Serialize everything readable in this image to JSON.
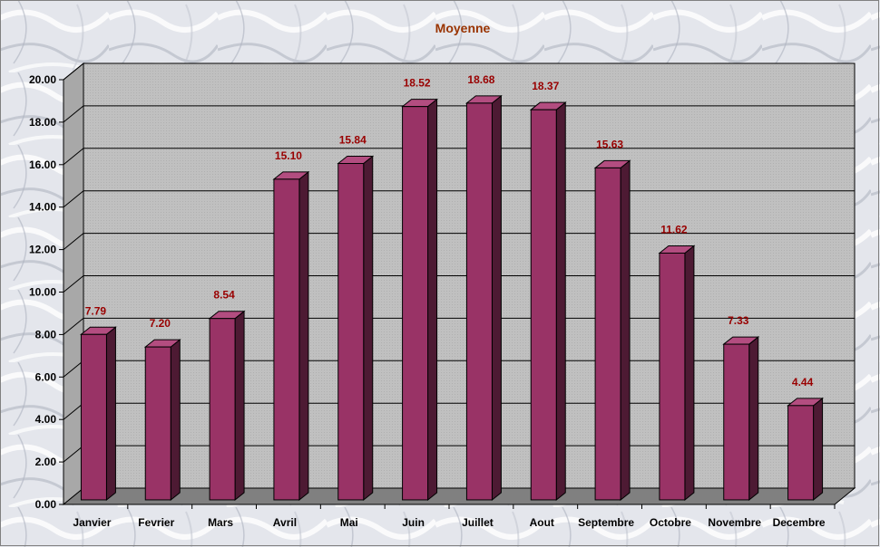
{
  "chart_data": {
    "type": "bar",
    "title": "Moyenne",
    "categories": [
      "Janvier",
      "Fevrier",
      "Mars",
      "Avril",
      "Mai",
      "Juin",
      "Juillet",
      "Aout",
      "Septembre",
      "Octobre",
      "Novembre",
      "Decembre"
    ],
    "values": [
      7.79,
      7.2,
      8.54,
      15.1,
      15.84,
      18.52,
      18.68,
      18.37,
      15.63,
      11.62,
      7.33,
      4.44
    ],
    "data_labels": [
      "7.79",
      "7.20",
      "8.54",
      "15.10",
      "15.84",
      "18.52",
      "18.68",
      "18.37",
      "15.63",
      "11.62",
      "7.33",
      "4.44"
    ],
    "ylim": [
      0,
      20
    ],
    "yticks": [
      "0.00",
      "2.00",
      "4.00",
      "6.00",
      "8.00",
      "10.00",
      "12.00",
      "14.00",
      "16.00",
      "18.00",
      "20.00"
    ],
    "grid": true,
    "legend": "none",
    "colors": {
      "bar_front": "#993366",
      "bar_side": "#4d1a33",
      "bar_top": "#b34d80",
      "plot_wall": "#c0c0c0",
      "floor": "#808080",
      "data_label": "#990000",
      "title": "#993300"
    }
  }
}
